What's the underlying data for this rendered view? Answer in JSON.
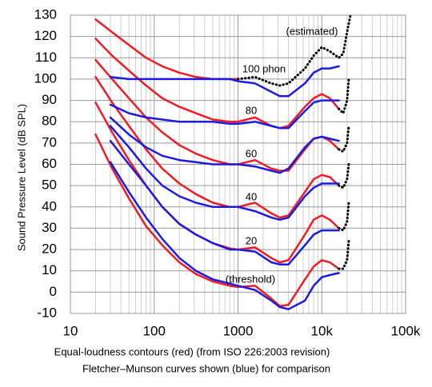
{
  "chart_data": {
    "type": "line",
    "log_x": true,
    "grid": true,
    "y_label": "Sound Pressure Level (dB SPL)",
    "caption": [
      "Equal-loudness contours (red) (from ISO 226:2003 revision)",
      "Fletcher–Munson curves shown (blue) for comparison"
    ],
    "annotations": [
      "(estimated)",
      "100 phon",
      "80",
      "60",
      "40",
      "20",
      "(threshold)"
    ],
    "xlim": [
      10,
      100000
    ],
    "ylim": [
      -10,
      130
    ],
    "xticks": [
      10,
      100,
      1000,
      {
        "value": 10000,
        "label": "10k"
      },
      {
        "value": 100000,
        "label": "100k"
      }
    ],
    "xminor": [
      20,
      30,
      40,
      50,
      60,
      70,
      80,
      90,
      200,
      300,
      400,
      500,
      600,
      700,
      800,
      900,
      2000,
      3000,
      4000,
      5000,
      6000,
      7000,
      8000,
      9000,
      20000,
      30000,
      40000,
      50000,
      60000,
      70000,
      80000,
      90000
    ],
    "yticks": [
      -10,
      0,
      10,
      20,
      30,
      40,
      50,
      60,
      70,
      80,
      90,
      100,
      110,
      120,
      130
    ],
    "series": [
      {
        "color": "#ee1c24",
        "x": [
          20,
          31.5,
          50,
          80,
          125,
          200,
          315,
          500,
          800,
          1000,
          1600,
          2500,
          3150,
          4000,
          6300,
          8000,
          10000,
          12500,
          16000
        ],
        "values": [
          74,
          58,
          44,
          31,
          22,
          14,
          8.5,
          5,
          3,
          2.4,
          3,
          -3,
          -6.5,
          -6,
          6,
          12,
          15,
          14,
          11
        ]
      },
      {
        "color": "#ee1c24",
        "x": [
          20,
          31.5,
          50,
          80,
          125,
          200,
          315,
          500,
          800,
          1000,
          1600,
          2500,
          3150,
          4000,
          6300,
          8000,
          10000,
          12500,
          16000
        ],
        "values": [
          89,
          75,
          62,
          50,
          40,
          32,
          27,
          23,
          20.5,
          20,
          21,
          16,
          14,
          15,
          27,
          34,
          36,
          34,
          30
        ]
      },
      {
        "color": "#ee1c24",
        "x": [
          20,
          31.5,
          50,
          80,
          125,
          200,
          315,
          500,
          800,
          1000,
          1600,
          2500,
          3150,
          4000,
          6300,
          8000,
          10000,
          12500,
          16000
        ],
        "values": [
          101,
          89,
          78,
          67,
          58,
          51,
          46,
          42,
          40,
          40,
          42,
          37,
          35,
          36,
          47,
          53,
          55,
          54,
          50
        ]
      },
      {
        "color": "#ee1c24",
        "x": [
          20,
          31.5,
          50,
          80,
          125,
          200,
          315,
          500,
          800,
          1000,
          1600,
          2500,
          3150,
          4000,
          6300,
          8000,
          10000,
          12500,
          16000
        ],
        "values": [
          109,
          100,
          91,
          82,
          75,
          69,
          65,
          62,
          60,
          60,
          62,
          58,
          57,
          57,
          67,
          72,
          73,
          71,
          67
        ]
      },
      {
        "color": "#ee1c24",
        "x": [
          20,
          31.5,
          50,
          80,
          125,
          200,
          315,
          500,
          800,
          1000,
          1600,
          2500,
          3150,
          4000,
          6300,
          8000,
          10000,
          12500,
          16000
        ],
        "values": [
          119,
          111,
          104,
          97,
          91,
          87,
          84,
          81,
          80,
          80,
          82,
          78,
          77,
          78,
          87,
          91,
          93,
          91,
          86
        ]
      },
      {
        "color": "#ee1c24",
        "x": [
          20,
          31.5,
          50,
          80,
          125,
          200,
          315,
          500,
          800,
          1000
        ],
        "values": [
          128,
          122,
          116,
          110,
          106,
          103,
          101,
          100,
          100,
          100
        ]
      },
      {
        "color": "#1c1cdd",
        "x": [
          30,
          50,
          80,
          125,
          200,
          315,
          500,
          800,
          1000,
          1600,
          2500,
          3150,
          4000,
          6300,
          8000,
          10000,
          12500,
          16000
        ],
        "values": [
          61,
          47,
          35,
          25,
          16,
          10,
          6,
          4,
          3,
          1,
          -4,
          -7,
          -8,
          -4,
          3,
          7,
          8,
          9
        ]
      },
      {
        "color": "#1c1cdd",
        "x": [
          30,
          50,
          80,
          125,
          200,
          315,
          500,
          800,
          1000,
          1600,
          2500,
          3150,
          4000,
          6300,
          8000,
          10000,
          12500,
          16000
        ],
        "values": [
          71,
          60,
          50,
          40,
          32,
          27,
          23,
          20,
          20,
          19,
          14,
          13,
          13,
          22,
          27,
          29,
          29,
          29
        ]
      },
      {
        "color": "#1c1cdd",
        "x": [
          30,
          50,
          80,
          125,
          200,
          315,
          500,
          800,
          1000,
          1600,
          2500,
          3150,
          4000,
          6300,
          8000,
          10000,
          12500,
          16000
        ],
        "values": [
          78,
          68,
          58,
          50,
          45,
          42,
          40,
          40,
          40,
          38,
          35,
          34,
          35,
          45,
          49,
          51,
          51,
          51
        ]
      },
      {
        "color": "#1c1cdd",
        "x": [
          30,
          50,
          80,
          125,
          200,
          315,
          500,
          800,
          1000,
          1600,
          2500,
          3150,
          4000,
          6300,
          8000,
          10000,
          12500,
          16000
        ],
        "values": [
          82,
          74,
          68,
          64,
          62,
          61,
          60,
          60,
          60,
          59,
          57,
          56,
          58,
          68,
          72,
          73,
          72,
          71
        ]
      },
      {
        "color": "#1c1cdd",
        "x": [
          30,
          50,
          80,
          125,
          200,
          315,
          500,
          800,
          1000,
          1600,
          2500,
          3150,
          4000,
          6300,
          8000,
          10000,
          12500,
          16000
        ],
        "values": [
          88,
          84,
          82,
          81,
          80,
          80,
          80,
          79,
          79,
          80,
          78,
          77,
          77,
          85,
          89,
          90,
          90,
          90
        ]
      },
      {
        "color": "#1c1cdd",
        "x": [
          30,
          50,
          80,
          125,
          200,
          315,
          500,
          800,
          1000,
          1600,
          2500,
          3150,
          4000,
          6300,
          8000,
          10000,
          12500,
          16000
        ],
        "values": [
          101,
          100,
          100,
          100,
          100,
          100,
          100,
          100,
          99,
          98,
          94,
          92,
          92,
          98,
          103,
          105,
          105,
          106
        ]
      },
      {
        "color": "#000000",
        "dotted": true,
        "x": [
          1000,
          1600,
          2500,
          3150,
          4000,
          6300,
          8000,
          10000,
          12500,
          16000,
          18000,
          20000,
          22000
        ],
        "values": [
          100,
          101,
          98,
          97,
          98,
          105,
          111,
          115,
          113,
          110,
          112,
          122,
          130
        ]
      },
      {
        "color": "#000000",
        "dotted": true,
        "x": [
          16000,
          18000,
          20000,
          21000
        ],
        "values": [
          86,
          84,
          90,
          100
        ]
      },
      {
        "color": "#000000",
        "dotted": true,
        "x": [
          16000,
          18000,
          20000,
          21000
        ],
        "values": [
          67,
          66,
          70,
          78
        ]
      },
      {
        "color": "#000000",
        "dotted": true,
        "x": [
          16000,
          18000,
          20000,
          21000
        ],
        "values": [
          50,
          49,
          53,
          60
        ]
      },
      {
        "color": "#000000",
        "dotted": true,
        "x": [
          16000,
          18000,
          20000,
          21000
        ],
        "values": [
          30,
          29,
          33,
          42
        ]
      },
      {
        "color": "#000000",
        "dotted": true,
        "x": [
          16000,
          18000,
          20000,
          21000
        ],
        "values": [
          11,
          11,
          15,
          24
        ]
      }
    ]
  }
}
